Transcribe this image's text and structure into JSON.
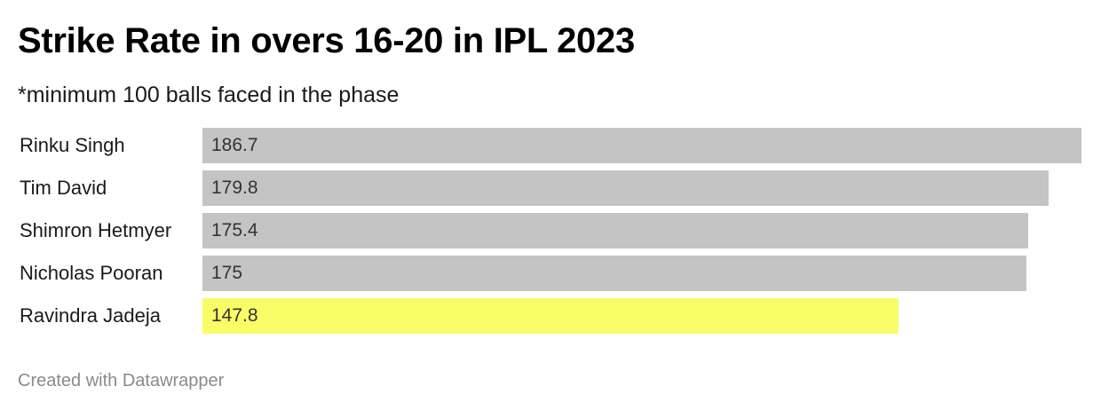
{
  "title": "Strike Rate in overs 16-20 in IPL 2023",
  "subtitle": "*minimum 100 balls faced in the phase",
  "footer": "Created with Datawrapper",
  "colors": {
    "default_bar": "#c4c4c4",
    "highlight_bar": "#f8fc66"
  },
  "chart_data": {
    "type": "bar",
    "orientation": "horizontal",
    "title": "Strike Rate in overs 16-20 in IPL 2023",
    "subtitle": "*minimum 100 balls faced in the phase",
    "xlim": [
      0,
      186.7
    ],
    "grid": false,
    "rows": [
      {
        "label": "Rinku Singh",
        "value": 186.7,
        "display": "186.7",
        "highlight": false
      },
      {
        "label": "Tim David",
        "value": 179.8,
        "display": "179.8",
        "highlight": false
      },
      {
        "label": "Shimron Hetmyer",
        "value": 175.4,
        "display": "175.4",
        "highlight": false
      },
      {
        "label": "Nicholas Pooran",
        "value": 175,
        "display": "175",
        "highlight": false
      },
      {
        "label": "Ravindra Jadeja",
        "value": 147.8,
        "display": "147.8",
        "highlight": true
      }
    ]
  }
}
